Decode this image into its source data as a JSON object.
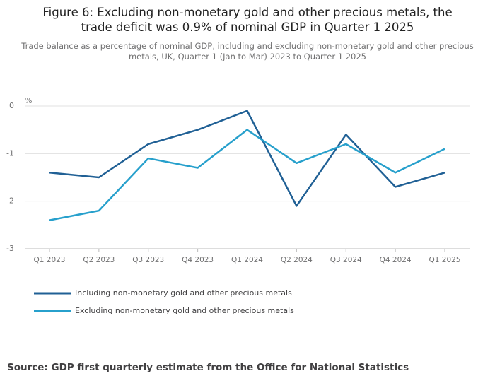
{
  "chart_data": {
    "type": "line",
    "title": "Figure 6: Excluding non-monetary gold and other precious metals, the trade deficit was 0.9% of nominal GDP in Quarter 1 2025",
    "subtitle": "Trade balance as a percentage of nominal GDP, including and excluding non-monetary gold and other precious metals, UK, Quarter 1 (Jan to Mar) 2023 to Quarter 1 2025",
    "y_label": "%",
    "categories": [
      "Q1 2023",
      "Q2 2023",
      "Q3 2023",
      "Q4 2023",
      "Q1 2024",
      "Q2 2024",
      "Q3 2024",
      "Q4 2024",
      "Q1 2025"
    ],
    "series": [
      {
        "name": "Including non-monetary gold and other precious metals",
        "color": "#206095",
        "values": [
          -1.4,
          -1.5,
          -0.8,
          -0.5,
          -0.1,
          -2.1,
          -0.6,
          -1.7,
          -1.4
        ]
      },
      {
        "name": "Excluding non-monetary gold and other precious metals",
        "color": "#27a0cc",
        "values": [
          -2.4,
          -2.2,
          -1.1,
          -1.3,
          -0.5,
          -1.2,
          -0.8,
          -1.4,
          -0.9
        ]
      }
    ],
    "ylim": [
      -3,
      0
    ],
    "yticks": [
      0,
      -1,
      -2,
      -3
    ],
    "grid": true,
    "source": "Source: GDP first quarterly estimate from the Office for National Statistics"
  }
}
